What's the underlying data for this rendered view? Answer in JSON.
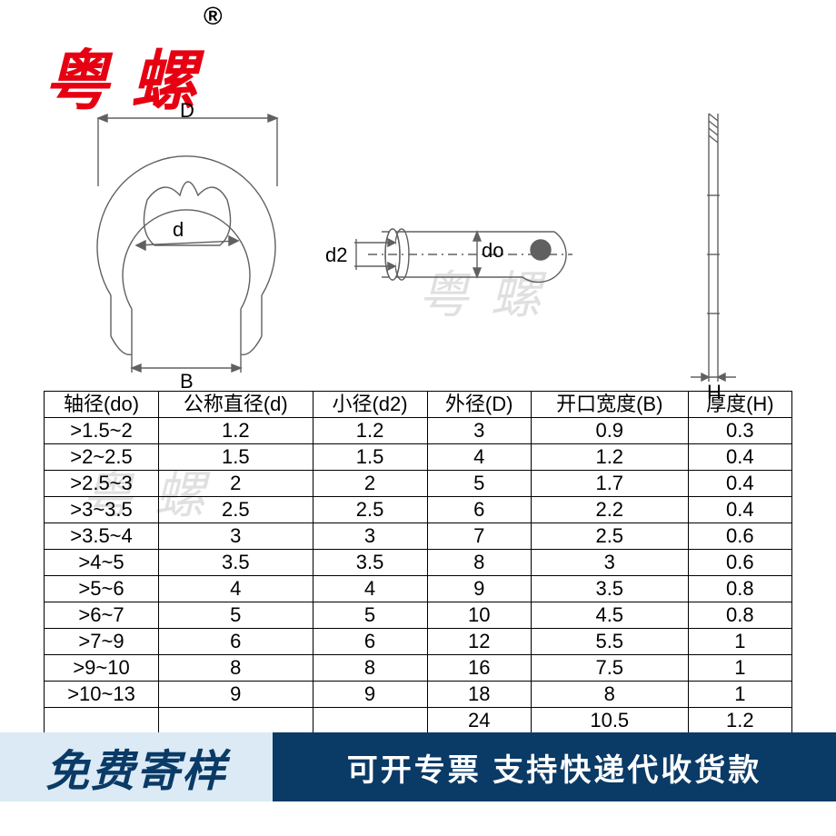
{
  "brand": {
    "name": "粤 螺",
    "registered": "®"
  },
  "watermark": "粤 螺",
  "diagram": {
    "labels": {
      "D": "D",
      "d": "d",
      "B": "B",
      "d2": "d2",
      "do": "do",
      "H": "H"
    },
    "stroke": "#606060",
    "line_width": 1.4
  },
  "table": {
    "columns": [
      "轴径(do)",
      "公称直径(d)",
      "小径(d2)",
      "外径(D)",
      "开口宽度(B)",
      "厚度(H)"
    ],
    "col_widths_pct": [
      16.6,
      16.6,
      16.6,
      16.6,
      16.8,
      16.8
    ],
    "rows": [
      [
        ">1.5~2",
        "1.2",
        "1.2",
        "3",
        "0.9",
        "0.3"
      ],
      [
        ">2~2.5",
        "1.5",
        "1.5",
        "4",
        "1.2",
        "0.4"
      ],
      [
        ">2.5~3",
        "2",
        "2",
        "5",
        "1.7",
        "0.4"
      ],
      [
        ">3~3.5",
        "2.5",
        "2.5",
        "6",
        "2.2",
        "0.4"
      ],
      [
        ">3.5~4",
        "3",
        "3",
        "7",
        "2.5",
        "0.6"
      ],
      [
        ">4~5",
        "3.5",
        "3.5",
        "8",
        "3",
        "0.6"
      ],
      [
        ">5~6",
        "4",
        "4",
        "9",
        "3.5",
        "0.8"
      ],
      [
        ">6~7",
        "5",
        "5",
        "10",
        "4.5",
        "0.8"
      ],
      [
        ">7~9",
        "6",
        "6",
        "12",
        "5.5",
        "1"
      ],
      [
        ">9~10",
        "8",
        "8",
        "16",
        "7.5",
        "1"
      ],
      [
        ">10~13",
        "9",
        "9",
        "18",
        "8",
        "1"
      ],
      [
        "",
        "",
        "",
        "24",
        "10.5",
        "1.2"
      ]
    ],
    "border_color": "#000000",
    "font_size": 22
  },
  "banner": {
    "left_text": "免费寄样",
    "right_text": "可开专票 支持快递代收货款",
    "left_bg": "#dbeaf5",
    "left_color": "#0a3a66",
    "right_bg": "#0a3a66",
    "right_color": "#ffffff"
  }
}
